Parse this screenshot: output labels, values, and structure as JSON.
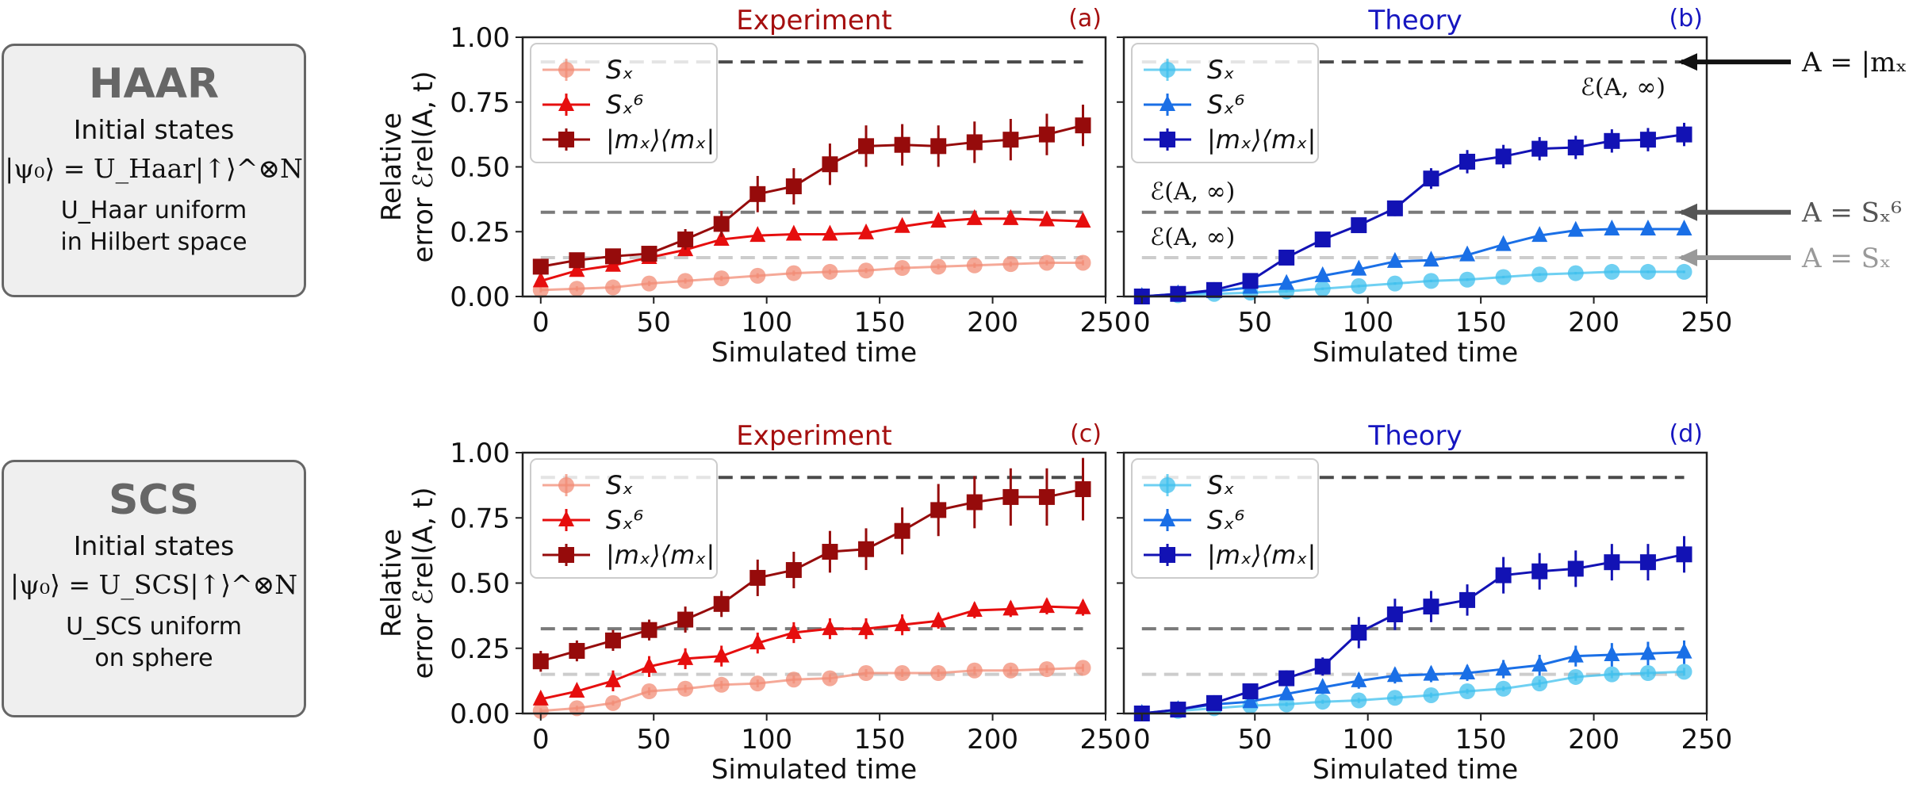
{
  "boxes": [
    {
      "title": "HAAR",
      "subtitle": "Initial states",
      "equation": "|ψ₀⟩ = U_Haar|↑⟩^⊗N",
      "line3": "U_Haar uniform",
      "line4": "in Hilbert space"
    },
    {
      "title": "SCS",
      "subtitle": "Initial states",
      "equation": "|ψ₀⟩ = U_SCS|↑⟩^⊗N",
      "line3": "U_SCS uniform",
      "line4": "on sphere"
    }
  ],
  "colors": {
    "exp": {
      "sx": "#f28c76",
      "s6": "#e60e0e",
      "mx": "#960b0b",
      "title": "#a50f0f"
    },
    "theo": {
      "sx": "#3fc0ee",
      "s6": "#1a6fe6",
      "mx": "#1212b4",
      "title": "#1616c0"
    },
    "dash": [
      "#4a4a4a",
      "#7a7a7a",
      "#cccccc"
    ]
  },
  "annotations": {
    "eq_mx": "A = |mₓ⟩⟨mₓ|",
    "eq_s6": "A = Sₓ⁶",
    "eq_sx": "A = Sₓ",
    "einf": "ℰ(A, ∞)"
  },
  "chart_data": [
    {
      "type": "line",
      "panel": "(a)",
      "title": "Experiment",
      "xlabel": "Simulated time",
      "ylabel": [
        "Relative",
        "error ℰrel(A, t)"
      ],
      "xlim": [
        -8,
        250
      ],
      "ylim": [
        0,
        1.0
      ],
      "xticks": [
        0,
        50,
        100,
        150,
        200,
        250
      ],
      "yticks": [
        0.0,
        0.25,
        0.5,
        0.75,
        1.0
      ],
      "ytick_labels": [
        "0.00",
        "0.25",
        "0.50",
        "0.75",
        "1.00"
      ],
      "hlines": [
        0.905,
        0.325,
        0.15
      ],
      "legend": [
        "Sₓ",
        "Sₓ⁶",
        "|mₓ⟩⟨mₓ|"
      ],
      "x": [
        0,
        16,
        32,
        48,
        64,
        80,
        96,
        112,
        128,
        144,
        160,
        176,
        192,
        208,
        224,
        240
      ],
      "series": [
        {
          "name": "Sx",
          "marker": "circle",
          "values": [
            0.025,
            0.03,
            0.035,
            0.05,
            0.06,
            0.07,
            0.08,
            0.09,
            0.095,
            0.1,
            0.11,
            0.115,
            0.12,
            0.125,
            0.13,
            0.13
          ],
          "err": [
            0.01,
            0.01,
            0.01,
            0.01,
            0.01,
            0.01,
            0.01,
            0.01,
            0.01,
            0.01,
            0.01,
            0.01,
            0.01,
            0.01,
            0.01,
            0.01
          ]
        },
        {
          "name": "Sx6",
          "marker": "triangle",
          "values": [
            0.06,
            0.1,
            0.12,
            0.15,
            0.18,
            0.22,
            0.235,
            0.24,
            0.24,
            0.245,
            0.27,
            0.29,
            0.3,
            0.3,
            0.295,
            0.29
          ],
          "err": [
            0.02,
            0.02,
            0.02,
            0.02,
            0.02,
            0.02,
            0.02,
            0.02,
            0.02,
            0.02,
            0.02,
            0.02,
            0.02,
            0.02,
            0.02,
            0.02
          ]
        },
        {
          "name": "mx",
          "marker": "square",
          "values": [
            0.115,
            0.14,
            0.155,
            0.165,
            0.22,
            0.28,
            0.395,
            0.425,
            0.51,
            0.58,
            0.585,
            0.58,
            0.595,
            0.605,
            0.625,
            0.66
          ],
          "err": [
            0.02,
            0.02,
            0.02,
            0.03,
            0.04,
            0.05,
            0.07,
            0.07,
            0.08,
            0.08,
            0.08,
            0.08,
            0.08,
            0.08,
            0.08,
            0.08
          ]
        }
      ]
    },
    {
      "type": "line",
      "panel": "(b)",
      "title": "Theory",
      "xlabel": "Simulated time",
      "xlim": [
        -8,
        250
      ],
      "ylim": [
        0,
        1.0
      ],
      "xticks": [
        0,
        50,
        100,
        150,
        200,
        250
      ],
      "yticks": [
        0.0,
        0.25,
        0.5,
        0.75,
        1.0
      ],
      "hlines": [
        0.905,
        0.325,
        0.15
      ],
      "legend": [
        "Sₓ",
        "Sₓ⁶",
        "|mₓ⟩⟨mₓ|"
      ],
      "x": [
        0,
        16,
        32,
        48,
        64,
        80,
        96,
        112,
        128,
        144,
        160,
        176,
        192,
        208,
        224,
        240
      ],
      "series": [
        {
          "name": "Sx",
          "marker": "circle",
          "values": [
            0,
            0.005,
            0.01,
            0.015,
            0.02,
            0.03,
            0.04,
            0.05,
            0.06,
            0.065,
            0.075,
            0.085,
            0.09,
            0.095,
            0.095,
            0.095
          ],
          "err": [
            0,
            0.005,
            0.005,
            0.005,
            0.005,
            0.005,
            0.005,
            0.005,
            0.005,
            0.005,
            0.005,
            0.005,
            0.005,
            0.005,
            0.005,
            0.005
          ]
        },
        {
          "name": "Sx6",
          "marker": "triangle",
          "values": [
            0,
            0.01,
            0.02,
            0.035,
            0.05,
            0.08,
            0.105,
            0.135,
            0.14,
            0.16,
            0.2,
            0.235,
            0.255,
            0.26,
            0.26,
            0.26
          ],
          "err": [
            0,
            0.005,
            0.008,
            0.01,
            0.01,
            0.01,
            0.015,
            0.015,
            0.015,
            0.015,
            0.02,
            0.02,
            0.02,
            0.02,
            0.02,
            0.02
          ]
        },
        {
          "name": "mx",
          "marker": "square",
          "values": [
            0,
            0.01,
            0.025,
            0.06,
            0.15,
            0.22,
            0.275,
            0.34,
            0.455,
            0.52,
            0.54,
            0.57,
            0.575,
            0.6,
            0.605,
            0.625
          ],
          "err": [
            0,
            0.005,
            0.01,
            0.015,
            0.02,
            0.02,
            0.025,
            0.03,
            0.04,
            0.045,
            0.045,
            0.045,
            0.045,
            0.045,
            0.045,
            0.045
          ]
        }
      ]
    },
    {
      "type": "line",
      "panel": "(c)",
      "title": "Experiment",
      "xlabel": "Simulated time",
      "ylabel": [
        "Relative",
        "error ℰrel(A, t)"
      ],
      "xlim": [
        -8,
        250
      ],
      "ylim": [
        0,
        1.0
      ],
      "xticks": [
        0,
        50,
        100,
        150,
        200,
        250
      ],
      "yticks": [
        0.0,
        0.25,
        0.5,
        0.75,
        1.0
      ],
      "ytick_labels": [
        "0.00",
        "0.25",
        "0.50",
        "0.75",
        "1.00"
      ],
      "hlines": [
        0.905,
        0.325,
        0.15
      ],
      "legend": [
        "Sₓ",
        "Sₓ⁶",
        "|mₓ⟩⟨mₓ|"
      ],
      "x": [
        0,
        16,
        32,
        48,
        64,
        80,
        96,
        112,
        128,
        144,
        160,
        176,
        192,
        208,
        224,
        240
      ],
      "series": [
        {
          "name": "Sx",
          "marker": "circle",
          "values": [
            0.01,
            0.02,
            0.04,
            0.085,
            0.095,
            0.11,
            0.115,
            0.13,
            0.135,
            0.155,
            0.155,
            0.155,
            0.165,
            0.165,
            0.17,
            0.175
          ],
          "err": [
            0.01,
            0.01,
            0.01,
            0.015,
            0.015,
            0.015,
            0.015,
            0.015,
            0.015,
            0.015,
            0.015,
            0.015,
            0.015,
            0.015,
            0.015,
            0.015
          ]
        },
        {
          "name": "Sx6",
          "marker": "triangle",
          "values": [
            0.055,
            0.085,
            0.125,
            0.18,
            0.21,
            0.22,
            0.27,
            0.31,
            0.325,
            0.325,
            0.34,
            0.355,
            0.395,
            0.4,
            0.41,
            0.405
          ],
          "err": [
            0.02,
            0.02,
            0.04,
            0.04,
            0.04,
            0.04,
            0.04,
            0.04,
            0.04,
            0.04,
            0.04,
            0.03,
            0.03,
            0.03,
            0.03,
            0.03
          ]
        },
        {
          "name": "mx",
          "marker": "square",
          "values": [
            0.2,
            0.24,
            0.28,
            0.32,
            0.36,
            0.42,
            0.52,
            0.55,
            0.62,
            0.63,
            0.7,
            0.78,
            0.81,
            0.83,
            0.83,
            0.86
          ],
          "err": [
            0.04,
            0.04,
            0.04,
            0.04,
            0.05,
            0.05,
            0.07,
            0.07,
            0.08,
            0.08,
            0.09,
            0.1,
            0.1,
            0.11,
            0.11,
            0.12
          ]
        }
      ]
    },
    {
      "type": "line",
      "panel": "(d)",
      "title": "Theory",
      "xlabel": "Simulated time",
      "xlim": [
        -8,
        250
      ],
      "ylim": [
        0,
        1.0
      ],
      "xticks": [
        0,
        50,
        100,
        150,
        200,
        250
      ],
      "yticks": [
        0.0,
        0.25,
        0.5,
        0.75,
        1.0
      ],
      "hlines": [
        0.905,
        0.325,
        0.15
      ],
      "legend": [
        "Sₓ",
        "Sₓ⁶",
        "|mₓ⟩⟨mₓ|"
      ],
      "x": [
        0,
        16,
        32,
        48,
        64,
        80,
        96,
        112,
        128,
        144,
        160,
        176,
        192,
        208,
        224,
        240
      ],
      "series": [
        {
          "name": "Sx",
          "marker": "circle",
          "values": [
            0,
            0.01,
            0.02,
            0.03,
            0.035,
            0.045,
            0.05,
            0.06,
            0.07,
            0.085,
            0.095,
            0.115,
            0.14,
            0.15,
            0.155,
            0.16
          ],
          "err": [
            0,
            0.005,
            0.005,
            0.005,
            0.008,
            0.008,
            0.01,
            0.01,
            0.01,
            0.01,
            0.01,
            0.015,
            0.015,
            0.015,
            0.015,
            0.015
          ]
        },
        {
          "name": "Sx6",
          "marker": "triangle",
          "values": [
            0,
            0.015,
            0.035,
            0.045,
            0.075,
            0.1,
            0.125,
            0.145,
            0.15,
            0.155,
            0.17,
            0.185,
            0.22,
            0.225,
            0.23,
            0.235
          ],
          "err": [
            0,
            0.01,
            0.01,
            0.015,
            0.02,
            0.025,
            0.03,
            0.03,
            0.03,
            0.03,
            0.035,
            0.04,
            0.04,
            0.045,
            0.045,
            0.045
          ]
        },
        {
          "name": "mx",
          "marker": "square",
          "values": [
            0,
            0.015,
            0.04,
            0.085,
            0.135,
            0.18,
            0.31,
            0.38,
            0.41,
            0.435,
            0.53,
            0.545,
            0.555,
            0.58,
            0.58,
            0.61
          ],
          "err": [
            0,
            0.01,
            0.015,
            0.02,
            0.03,
            0.035,
            0.06,
            0.06,
            0.06,
            0.06,
            0.07,
            0.07,
            0.07,
            0.07,
            0.07,
            0.07
          ]
        }
      ]
    }
  ]
}
